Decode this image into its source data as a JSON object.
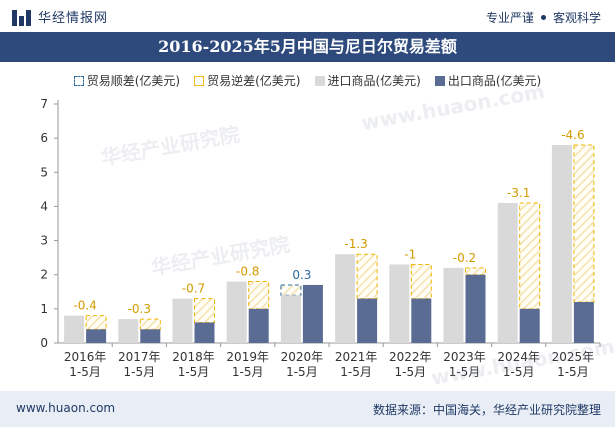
{
  "header": {
    "brand": "华经情报网",
    "slogan_left": "专业严谨",
    "slogan_right": "客观科学"
  },
  "title": "2016-2025年5月中国与尼日尔贸易差额",
  "legend": {
    "surplus": "贸易顺差(亿美元)",
    "deficit": "贸易逆差(亿美元)",
    "import": "进口商品(亿美元)",
    "export": "出口商品(亿美元)"
  },
  "footer": {
    "url": "www.huaon.com",
    "source": "数据来源：中国海关，华经产业研究院整理"
  },
  "watermarks": [
    "华经产业研究院",
    "www.huaon.com"
  ],
  "colors": {
    "import": "#d9d9d9",
    "export": "#5a6b94",
    "surplus": "#2e6da4",
    "deficit": "#f0b400",
    "title_bg": "#2e4a7d",
    "footer_bg": "#e9eef6"
  },
  "chart_data": {
    "type": "bar",
    "categories": [
      "2016年\n1-5月",
      "2017年\n1-5月",
      "2018年\n1-5月",
      "2019年\n1-5月",
      "2020年\n1-5月",
      "2021年\n1-5月",
      "2022年\n1-5月",
      "2023年\n1-5月",
      "2024年\n1-5月",
      "2025年\n1-5月"
    ],
    "series": [
      {
        "name": "进口商品(亿美元)",
        "values": [
          0.8,
          0.7,
          1.3,
          1.8,
          1.4,
          2.6,
          2.3,
          2.2,
          4.1,
          5.8
        ]
      },
      {
        "name": "出口商品(亿美元)",
        "values": [
          0.4,
          0.4,
          0.6,
          1.0,
          1.7,
          1.3,
          1.3,
          2.0,
          1.0,
          1.2
        ]
      }
    ],
    "balance": [
      -0.4,
      -0.3,
      -0.7,
      -0.8,
      0.3,
      -1.3,
      -1,
      -0.2,
      -3.1,
      -4.6
    ],
    "balance_labels": [
      "-0.4",
      "-0.3",
      "-0.7",
      "-0.8",
      "0.3",
      "-1.3",
      "-1",
      "-0.2",
      "-3.1",
      "-4.6"
    ],
    "ylim": [
      0,
      7
    ],
    "yticks": [
      0,
      1,
      2,
      3,
      4,
      5,
      6,
      7
    ],
    "xlabel": "",
    "ylabel": "",
    "grid": false,
    "legend_position": "top"
  }
}
